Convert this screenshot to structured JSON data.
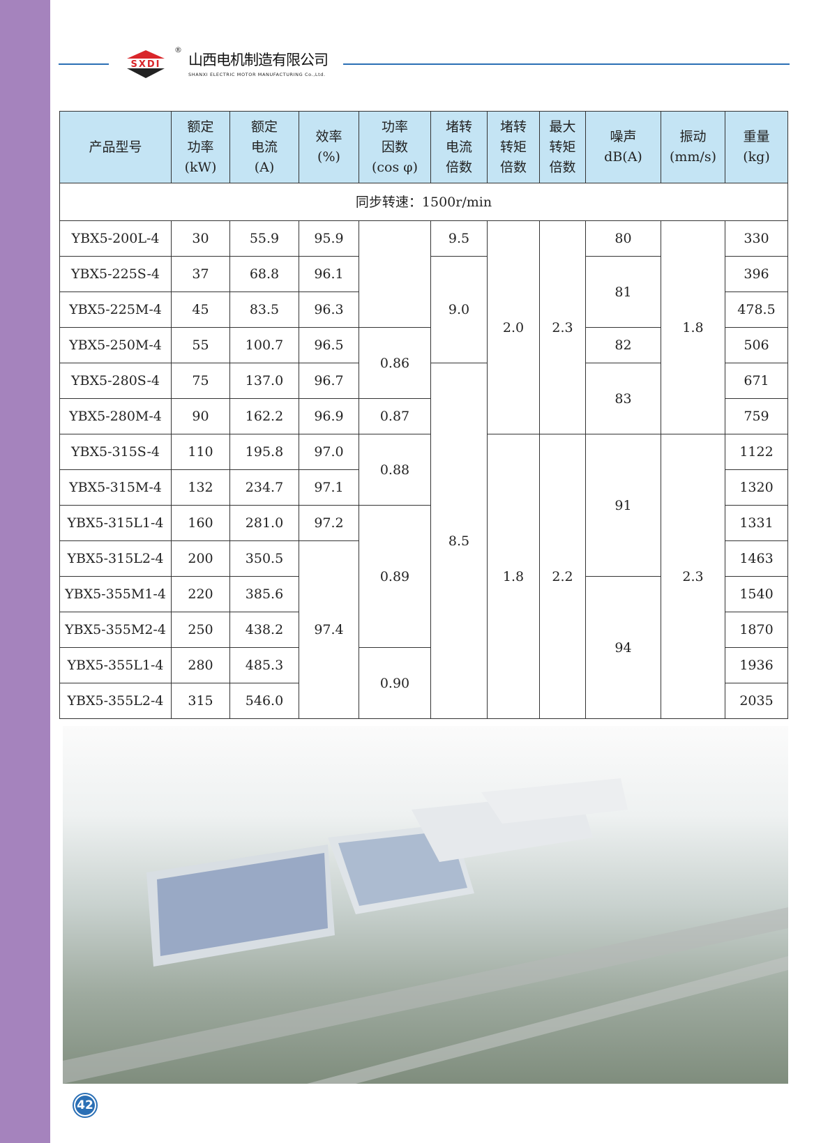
{
  "header": {
    "logo_text": "SXDI",
    "registered_mark": "®",
    "company_cn": "山西电机制造有限公司",
    "company_en": "SHANXI ELECTRIC MOTOR MANUFACTURING Co.,Ltd.",
    "accent_color": "#2a6fb5",
    "sidebar_color": "#a583bd"
  },
  "table": {
    "columns": [
      [
        "产品型号"
      ],
      [
        "额定",
        "功率",
        "(kW)"
      ],
      [
        "额定",
        "电流",
        "(A)"
      ],
      [
        "效率",
        "(%)"
      ],
      [
        "功率",
        "因数",
        "(cos φ)"
      ],
      [
        "堵转",
        "电流",
        "倍数"
      ],
      [
        "堵转",
        "转矩",
        "倍数"
      ],
      [
        "最大",
        "转矩",
        "倍数"
      ],
      [
        "噪声",
        "dB(A)"
      ],
      [
        "振动",
        "(mm/s)"
      ],
      [
        "重量",
        "(kg)"
      ]
    ],
    "section": "同步转速：1500r/min",
    "rows": [
      [
        {
          "t": "YBX5-200L-4"
        },
        {
          "t": "30"
        },
        {
          "t": "55.9"
        },
        {
          "t": "95.9"
        },
        {
          "t": "",
          "span": 3
        },
        {
          "t": "9.5"
        },
        {
          "t": "2.0",
          "span": 6
        },
        {
          "t": "2.3",
          "span": 6
        },
        {
          "t": "80"
        },
        {
          "t": "1.8",
          "span": 6
        },
        {
          "t": "330"
        }
      ],
      [
        {
          "t": "YBX5-225S-4"
        },
        {
          "t": "37"
        },
        {
          "t": "68.8"
        },
        {
          "t": "96.1"
        },
        {
          "t": "9.0",
          "span": 3
        },
        {
          "t": "81",
          "span": 2
        },
        {
          "t": "396"
        }
      ],
      [
        {
          "t": "YBX5-225M-4"
        },
        {
          "t": "45"
        },
        {
          "t": "83.5"
        },
        {
          "t": "96.3"
        },
        {
          "t": "478.5"
        }
      ],
      [
        {
          "t": "YBX5-250M-4"
        },
        {
          "t": "55"
        },
        {
          "t": "100.7"
        },
        {
          "t": "96.5"
        },
        {
          "t": "0.86",
          "span": 2
        },
        {
          "t": "82"
        },
        {
          "t": "506"
        }
      ],
      [
        {
          "t": "YBX5-280S-4"
        },
        {
          "t": "75"
        },
        {
          "t": "137.0"
        },
        {
          "t": "96.7"
        },
        {
          "t": "8.5",
          "span": 10
        },
        {
          "t": "83",
          "span": 2
        },
        {
          "t": "671"
        }
      ],
      [
        {
          "t": "YBX5-280M-4"
        },
        {
          "t": "90"
        },
        {
          "t": "162.2"
        },
        {
          "t": "96.9"
        },
        {
          "t": "0.87"
        },
        {
          "t": "759"
        }
      ],
      [
        {
          "t": "YBX5-315S-4"
        },
        {
          "t": "110"
        },
        {
          "t": "195.8"
        },
        {
          "t": "97.0"
        },
        {
          "t": "0.88",
          "span": 2
        },
        {
          "t": "1.8",
          "span": 8
        },
        {
          "t": "2.2",
          "span": 8
        },
        {
          "t": "91",
          "span": 4
        },
        {
          "t": "2.3",
          "span": 8
        },
        {
          "t": "1122"
        }
      ],
      [
        {
          "t": "YBX5-315M-4"
        },
        {
          "t": "132"
        },
        {
          "t": "234.7"
        },
        {
          "t": "97.1"
        },
        {
          "t": "1320"
        }
      ],
      [
        {
          "t": "YBX5-315L1-4"
        },
        {
          "t": "160"
        },
        {
          "t": "281.0"
        },
        {
          "t": "97.2"
        },
        {
          "t": "0.89",
          "span": 4
        },
        {
          "t": "1331"
        }
      ],
      [
        {
          "t": "YBX5-315L2-4"
        },
        {
          "t": "200"
        },
        {
          "t": "350.5"
        },
        {
          "t": "97.4",
          "span": 5
        },
        {
          "t": "1463"
        }
      ],
      [
        {
          "t": "YBX5-355M1-4"
        },
        {
          "t": "220"
        },
        {
          "t": "385.6"
        },
        {
          "t": "94",
          "span": 4
        },
        {
          "t": "1540"
        }
      ],
      [
        {
          "t": "YBX5-355M2-4"
        },
        {
          "t": "250"
        },
        {
          "t": "438.2"
        },
        {
          "t": "1870"
        }
      ],
      [
        {
          "t": "YBX5-355L1-4"
        },
        {
          "t": "280"
        },
        {
          "t": "485.3"
        },
        {
          "t": "0.90",
          "span": 2
        },
        {
          "t": "1936"
        }
      ],
      [
        {
          "t": "YBX5-355L2-4"
        },
        {
          "t": "315"
        },
        {
          "t": "546.0"
        },
        {
          "t": "2035"
        }
      ]
    ]
  },
  "footer": {
    "page_number": "42"
  }
}
